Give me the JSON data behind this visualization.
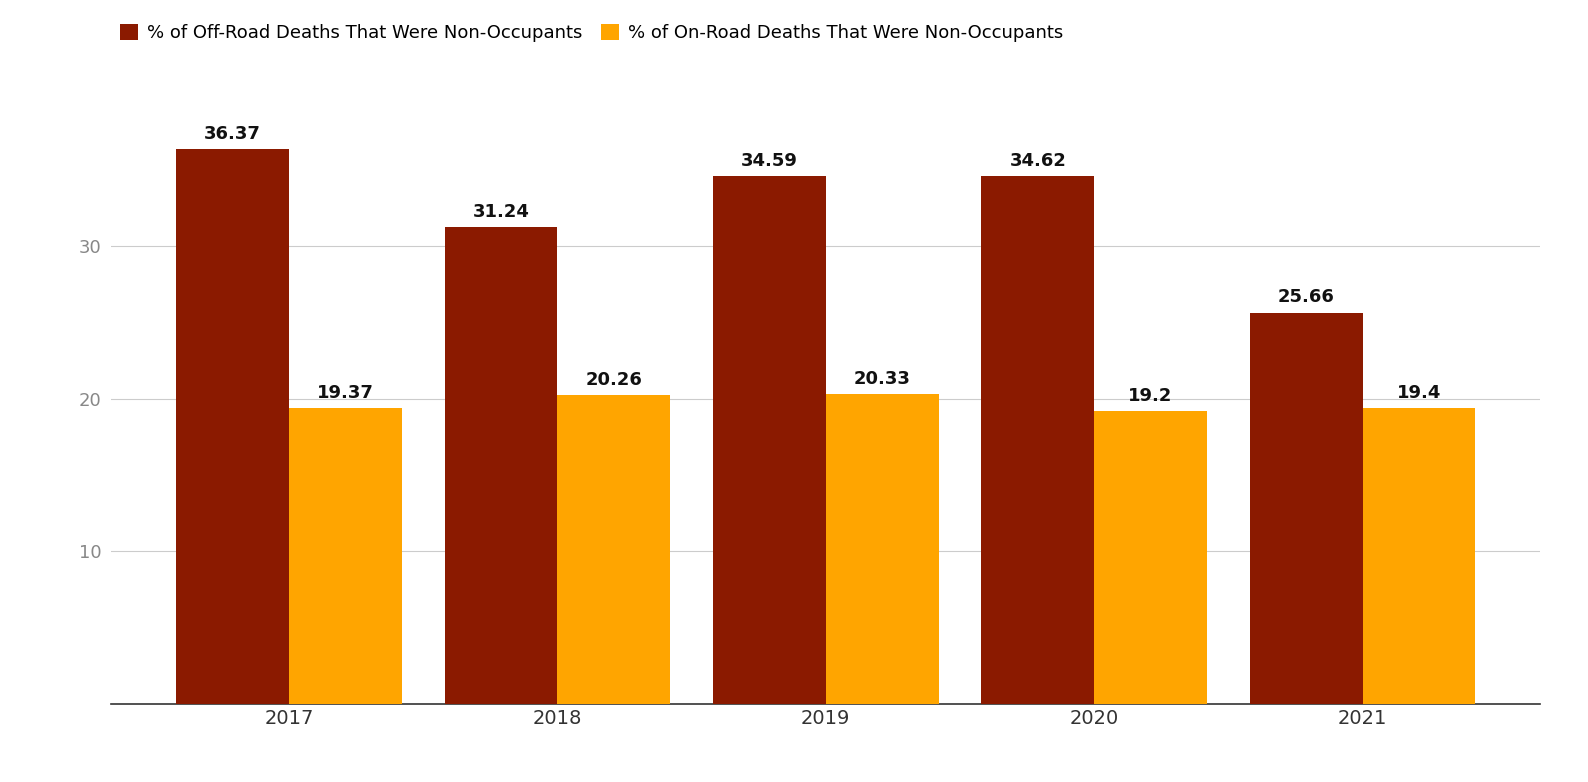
{
  "years": [
    "2017",
    "2018",
    "2019",
    "2020",
    "2021"
  ],
  "off_road": [
    36.37,
    31.24,
    34.59,
    34.62,
    25.66
  ],
  "on_road": [
    19.37,
    20.26,
    20.33,
    19.2,
    19.4
  ],
  "off_road_color": "#8B1A00",
  "on_road_color": "#FFA500",
  "legend_off_road": "% of Off-Road Deaths That Were Non-Occupants",
  "legend_on_road": "% of On-Road Deaths That Were Non-Occupants",
  "yticks": [
    10,
    20,
    30
  ],
  "ylim": [
    0,
    40
  ],
  "background_color": "#ffffff",
  "grid_color": "#cccccc",
  "bar_width": 0.42,
  "label_fontsize": 13,
  "tick_fontsize": 13,
  "legend_fontsize": 13
}
